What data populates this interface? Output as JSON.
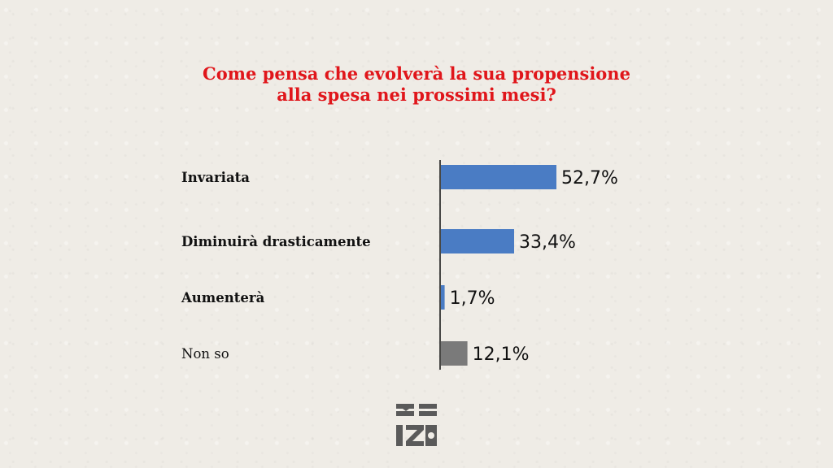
{
  "chart_data": {
    "type": "bar",
    "orientation": "horizontal",
    "title": "Come pensa che evolverà la sua propensione alla spesa nei prossimi mesi?",
    "title_lines": [
      "Come pensa che evolverà la sua propensione",
      "alla spesa nei prossimi mesi?"
    ],
    "categories": [
      "Invariata",
      "Diminuirà drasticamente",
      "Aumenterà",
      "Non so"
    ],
    "values": [
      52.7,
      33.4,
      1.7,
      12.1
    ],
    "value_labels": [
      "52,7%",
      "33,4%",
      "1,7%",
      "12,1%"
    ],
    "bold_categories": [
      true,
      true,
      true,
      false
    ],
    "bar_colors": [
      "#4a7cc4",
      "#4a7cc4",
      "#4a7cc4",
      "#7a7a7a"
    ],
    "xlim": [
      0,
      100
    ],
    "grid": false,
    "legend": "none"
  },
  "colors": {
    "title": "#e0161b",
    "background": "#efece6",
    "axis": "#111111",
    "series_blue": "#4a7cc4",
    "series_grey": "#7a7a7a"
  },
  "logo": {
    "icon": "publisher-logo-icon"
  }
}
